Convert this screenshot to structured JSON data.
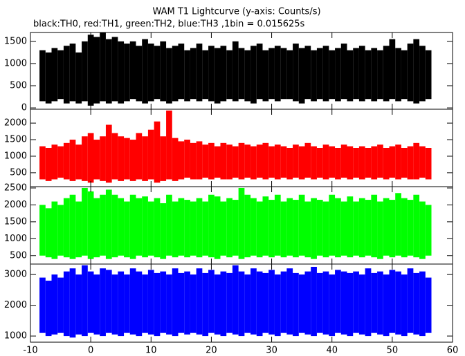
{
  "chart_data": [
    {
      "type": "range",
      "title": "WAM T1 Lightcurve (y-axis: Counts/s)",
      "subtitle": "black:TH0, red:TH1, green:TH2, blue:TH3 ,1bin = 0.015625s",
      "color": "#000000",
      "xlim": [
        -10,
        60
      ],
      "ylim": [
        -30,
        1700
      ],
      "yticks": [
        0,
        500,
        1000,
        1500
      ],
      "x": [
        -8,
        -7,
        -6,
        -5,
        -4,
        -3,
        -2,
        -1,
        0,
        1,
        2,
        3,
        4,
        5,
        6,
        7,
        8,
        9,
        10,
        11,
        12,
        13,
        14,
        15,
        16,
        17,
        18,
        19,
        20,
        21,
        22,
        23,
        24,
        25,
        26,
        27,
        28,
        29,
        30,
        31,
        32,
        33,
        34,
        35,
        36,
        37,
        38,
        39,
        40,
        41,
        42,
        43,
        44,
        45,
        46,
        47,
        48,
        49,
        50,
        51,
        52,
        53,
        54,
        55,
        56
      ],
      "max": [
        1300,
        1250,
        1350,
        1300,
        1400,
        1450,
        1250,
        1500,
        1650,
        1600,
        1700,
        1550,
        1600,
        1500,
        1450,
        1500,
        1400,
        1550,
        1450,
        1400,
        1500,
        1350,
        1400,
        1450,
        1300,
        1350,
        1450,
        1300,
        1400,
        1350,
        1400,
        1300,
        1500,
        1350,
        1300,
        1400,
        1450,
        1300,
        1350,
        1400,
        1350,
        1300,
        1450,
        1350,
        1400,
        1300,
        1350,
        1400,
        1300,
        1350,
        1450,
        1300,
        1350,
        1400,
        1300,
        1350,
        1300,
        1400,
        1550,
        1350,
        1300,
        1450,
        1550,
        1400,
        1300
      ],
      "min": [
        150,
        100,
        150,
        200,
        100,
        150,
        100,
        150,
        50,
        100,
        150,
        100,
        150,
        100,
        150,
        200,
        150,
        100,
        150,
        200,
        150,
        100,
        150,
        200,
        150,
        200,
        150,
        200,
        150,
        100,
        150,
        200,
        150,
        200,
        150,
        100,
        200,
        150,
        200,
        150,
        200,
        200,
        150,
        100,
        200,
        150,
        200,
        150,
        200,
        150,
        200,
        150,
        200,
        150,
        200,
        150,
        200,
        150,
        200,
        150,
        200,
        150,
        100,
        150,
        200
      ]
    },
    {
      "type": "range",
      "color": "#ff0000",
      "xlim": [
        -10,
        60
      ],
      "ylim": [
        80,
        2420
      ],
      "yticks": [
        500,
        1000,
        1500,
        2000
      ],
      "x": [
        -8,
        -7,
        -6,
        -5,
        -4,
        -3,
        -2,
        -1,
        0,
        1,
        2,
        3,
        4,
        5,
        6,
        7,
        8,
        9,
        10,
        11,
        12,
        13,
        14,
        15,
        16,
        17,
        18,
        19,
        20,
        21,
        22,
        23,
        24,
        25,
        26,
        27,
        28,
        29,
        30,
        31,
        32,
        33,
        34,
        35,
        36,
        37,
        38,
        39,
        40,
        41,
        42,
        43,
        44,
        45,
        46,
        47,
        48,
        49,
        50,
        51,
        52,
        53,
        54,
        55,
        56
      ],
      "max": [
        1300,
        1250,
        1350,
        1300,
        1400,
        1500,
        1350,
        1600,
        1700,
        1500,
        1600,
        1950,
        1700,
        1600,
        1550,
        1500,
        1700,
        1600,
        1800,
        2050,
        1600,
        2380,
        1550,
        1450,
        1500,
        1400,
        1450,
        1350,
        1400,
        1300,
        1400,
        1350,
        1300,
        1400,
        1350,
        1300,
        1350,
        1400,
        1300,
        1350,
        1300,
        1250,
        1350,
        1300,
        1400,
        1300,
        1250,
        1350,
        1300,
        1250,
        1350,
        1300,
        1250,
        1300,
        1250,
        1300,
        1350,
        1250,
        1300,
        1350,
        1250,
        1300,
        1400,
        1300,
        1250
      ],
      "min": [
        300,
        250,
        300,
        350,
        300,
        250,
        300,
        250,
        200,
        300,
        250,
        200,
        300,
        250,
        300,
        250,
        300,
        250,
        300,
        200,
        250,
        300,
        250,
        300,
        350,
        300,
        300,
        350,
        300,
        350,
        300,
        300,
        350,
        300,
        350,
        300,
        350,
        300,
        350,
        300,
        350,
        300,
        350,
        300,
        350,
        300,
        350,
        300,
        350,
        300,
        350,
        300,
        350,
        300,
        350,
        300,
        350,
        300,
        350,
        300,
        350,
        300,
        300,
        350,
        300
      ]
    },
    {
      "type": "range",
      "color": "#00ff00",
      "xlim": [
        -10,
        60
      ],
      "ylim": [
        250,
        2540
      ],
      "yticks": [
        500,
        1000,
        1500,
        2000,
        2500
      ],
      "x": [
        -8,
        -7,
        -6,
        -5,
        -4,
        -3,
        -2,
        -1,
        0,
        1,
        2,
        3,
        4,
        5,
        6,
        7,
        8,
        9,
        10,
        11,
        12,
        13,
        14,
        15,
        16,
        17,
        18,
        19,
        20,
        21,
        22,
        23,
        24,
        25,
        26,
        27,
        28,
        29,
        30,
        31,
        32,
        33,
        34,
        35,
        36,
        37,
        38,
        39,
        40,
        41,
        42,
        43,
        44,
        45,
        46,
        47,
        48,
        49,
        50,
        51,
        52,
        53,
        54,
        55,
        56
      ],
      "max": [
        2000,
        1900,
        2100,
        2000,
        2200,
        2300,
        2100,
        2500,
        2400,
        2200,
        2300,
        2450,
        2300,
        2200,
        2100,
        2300,
        2200,
        2250,
        2100,
        2200,
        2050,
        2300,
        2100,
        2200,
        2150,
        2100,
        2200,
        2100,
        2300,
        2250,
        2100,
        2200,
        2150,
        2500,
        2300,
        2200,
        2100,
        2250,
        2150,
        2300,
        2100,
        2200,
        2150,
        2300,
        2100,
        2200,
        2150,
        2100,
        2300,
        2200,
        2100,
        2250,
        2100,
        2200,
        2150,
        2300,
        2100,
        2200,
        2150,
        2350,
        2200,
        2150,
        2300,
        2100,
        2000
      ],
      "min": [
        500,
        450,
        400,
        500,
        450,
        400,
        450,
        500,
        400,
        450,
        500,
        400,
        450,
        500,
        450,
        400,
        500,
        450,
        500,
        450,
        400,
        500,
        450,
        500,
        450,
        500,
        450,
        500,
        450,
        400,
        500,
        450,
        500,
        400,
        450,
        500,
        450,
        500,
        450,
        500,
        450,
        500,
        450,
        500,
        450,
        400,
        500,
        450,
        500,
        450,
        500,
        450,
        500,
        450,
        500,
        450,
        400,
        500,
        450,
        500,
        450,
        500,
        450,
        400,
        500
      ]
    },
    {
      "type": "range",
      "color": "#0000ff",
      "xlim": [
        -10,
        60
      ],
      "ylim": [
        800,
        3340
      ],
      "yticks": [
        1000,
        2000,
        3000
      ],
      "xticks": [
        -10,
        0,
        10,
        20,
        30,
        40,
        50,
        60
      ],
      "x": [
        -8,
        -7,
        -6,
        -5,
        -4,
        -3,
        -2,
        -1,
        0,
        1,
        2,
        3,
        4,
        5,
        6,
        7,
        8,
        9,
        10,
        11,
        12,
        13,
        14,
        15,
        16,
        17,
        18,
        19,
        20,
        21,
        22,
        23,
        24,
        25,
        26,
        27,
        28,
        29,
        30,
        31,
        32,
        33,
        34,
        35,
        36,
        37,
        38,
        39,
        40,
        41,
        42,
        43,
        44,
        45,
        46,
        47,
        48,
        49,
        50,
        51,
        52,
        53,
        54,
        55,
        56
      ],
      "max": [
        2900,
        2800,
        3000,
        2900,
        3100,
        3200,
        3000,
        3300,
        3100,
        3000,
        3200,
        3150,
        3000,
        3100,
        3000,
        3200,
        3100,
        3000,
        3150,
        3050,
        3100,
        3000,
        3200,
        3050,
        3100,
        3000,
        3200,
        3050,
        3150,
        3000,
        3100,
        3050,
        3300,
        3100,
        3000,
        3200,
        3100,
        3050,
        3150,
        3000,
        3100,
        3200,
        3050,
        3000,
        3100,
        3250,
        3050,
        3100,
        3000,
        3150,
        3100,
        3050,
        3100,
        3000,
        3200,
        3050,
        3100,
        3000,
        3150,
        3100,
        3000,
        3200,
        3050,
        3100,
        2900
      ],
      "min": [
        1100,
        1000,
        1050,
        1100,
        1000,
        950,
        1050,
        1000,
        1100,
        1050,
        1000,
        1100,
        1050,
        1000,
        1100,
        1050,
        1000,
        1100,
        1050,
        1000,
        1100,
        1050,
        1000,
        1100,
        1050,
        1100,
        1050,
        1000,
        1100,
        1050,
        1000,
        1100,
        1050,
        1000,
        1100,
        1050,
        1000,
        1100,
        1050,
        1000,
        1100,
        1050,
        1000,
        1100,
        1050,
        1000,
        1100,
        1050,
        1000,
        1100,
        1050,
        1000,
        1100,
        1050,
        1000,
        1100,
        1050,
        1000,
        1100,
        1050,
        1000,
        1100,
        1050,
        1000,
        1100
      ]
    }
  ]
}
